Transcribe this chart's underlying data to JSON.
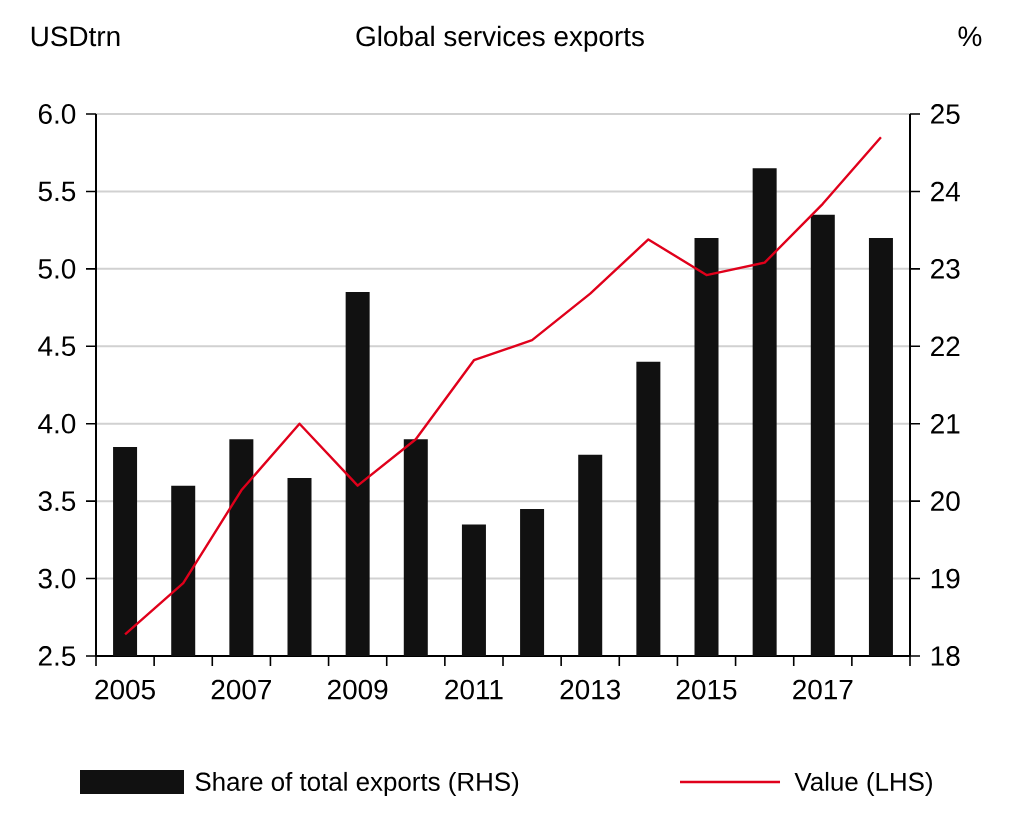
{
  "chart_data": {
    "type": "bar",
    "title": "Global services exports",
    "ylabel": "USDtrn",
    "y2label": "%",
    "categories": [
      "2005",
      null,
      "2007",
      null,
      "2009",
      null,
      "2011",
      null,
      "2013",
      null,
      "2015",
      null,
      "2017",
      null
    ],
    "series": [
      {
        "name": "Share of total exports (RHS)",
        "axis": "y2",
        "color": "#111111",
        "values": [
          20.7,
          20.2,
          20.8,
          20.3,
          22.7,
          20.8,
          19.7,
          19.9,
          20.6,
          21.8,
          23.4,
          24.3,
          23.7,
          23.4
        ]
      },
      {
        "name": "Value (LHS)",
        "type": "line",
        "color": "#e0001b",
        "values": [
          2.64,
          2.97,
          3.57,
          4.0,
          3.6,
          3.9,
          4.41,
          4.54,
          4.84,
          5.19,
          4.96,
          5.04,
          5.42,
          5.85
        ]
      }
    ],
    "ylim": [
      2.5,
      6.0
    ],
    "yticks": [
      {
        "value": 2.5,
        "label": "2.5"
      },
      {
        "value": 3.0,
        "label": "3.0"
      },
      {
        "value": 3.5,
        "label": "3.5"
      },
      {
        "value": 4.0,
        "label": "4.0"
      },
      {
        "value": 4.5,
        "label": "4.5"
      },
      {
        "value": 5.0,
        "label": "5.0"
      },
      {
        "value": 5.5,
        "label": "5.5"
      },
      {
        "value": 6.0,
        "label": "6.0"
      }
    ],
    "y2lim": [
      18,
      25
    ],
    "y2ticks": [
      18,
      19,
      20,
      21,
      22,
      23,
      24,
      25
    ],
    "grid": "y",
    "legend": "bottom",
    "marker": "none",
    "line_style": "solid"
  }
}
